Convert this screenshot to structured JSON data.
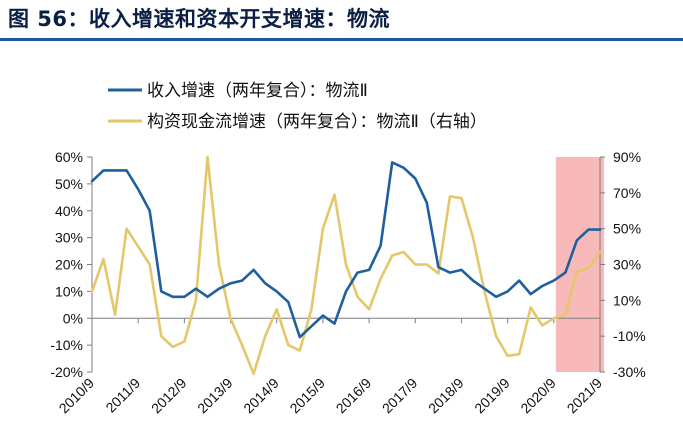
{
  "page_title": "图 56：收入增速和资本开支增速：物流",
  "chart_data": {
    "type": "line",
    "title": "图 56：收入增速和资本开支增速：物流",
    "x_tick_labels": [
      "2010/9",
      "2011/9",
      "2012/9",
      "2013/9",
      "2014/9",
      "2015/9",
      "2016/9",
      "2017/9",
      "2018/9",
      "2019/9",
      "2020/9",
      "2021/9"
    ],
    "quarters_per_tick": 4,
    "left_axis": {
      "ylim": [
        -20,
        60
      ],
      "step": 10,
      "tick_labels": [
        "60%",
        "50%",
        "40%",
        "30%",
        "20%",
        "10%",
        "0%",
        "-10%",
        "-20%"
      ]
    },
    "right_axis": {
      "ylim": [
        -30,
        90
      ],
      "step": 20,
      "tick_labels": [
        "90%",
        "70%",
        "50%",
        "30%",
        "10%",
        "-10%",
        "-30%"
      ]
    },
    "highlight": {
      "from_index": 40,
      "to_index": 44,
      "color": "#f8b9b9"
    },
    "series": [
      {
        "name": "收入增速（两年复合）：物流Ⅱ",
        "axis": "left",
        "color": "#1f5f9e",
        "values": [
          51,
          55,
          55,
          55,
          48,
          40,
          10,
          8,
          8,
          11,
          8,
          11,
          13,
          14,
          18,
          13,
          10,
          6,
          -7,
          -3,
          1,
          -2,
          10,
          17,
          18,
          27,
          58,
          56,
          52,
          43,
          19,
          17,
          18,
          14,
          11,
          8,
          10,
          14,
          9,
          12,
          14,
          17,
          29,
          33,
          33
        ]
      },
      {
        "name": "构资现金流增速（两年复合）：物流Ⅱ（右轴）",
        "axis": "right",
        "color": "#e3c76a",
        "values": [
          15,
          33,
          2,
          50,
          40,
          30,
          -10,
          -16,
          -13,
          10,
          90,
          30,
          0,
          -15,
          -31,
          -10,
          5,
          -15,
          -18,
          5,
          50,
          69,
          30,
          12,
          5,
          22,
          35,
          37,
          30,
          30,
          25,
          68,
          67,
          45,
          15,
          -10,
          -21,
          -20,
          6,
          -4,
          0,
          2,
          26,
          28,
          37
        ]
      }
    ]
  }
}
